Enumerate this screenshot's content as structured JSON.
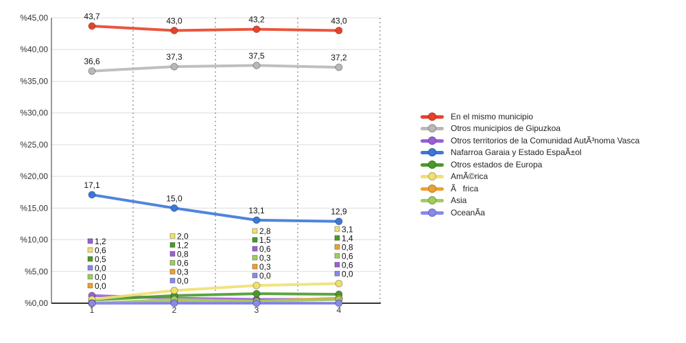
{
  "chart_data": {
    "type": "line",
    "categories": [
      "1",
      "2",
      "3",
      "4"
    ],
    "ylim": [
      0,
      45
    ],
    "yticks": [
      "%0,00",
      "%5,00",
      "%10,00",
      "%15,00",
      "%20,00",
      "%25,00",
      "%30,00",
      "%35,00",
      "%40,00",
      "%45,00"
    ],
    "grid": true,
    "legend_position": "right",
    "series": [
      {
        "name": "En el mismo municipio",
        "color": "#e8432a",
        "values": [
          43.7,
          43.0,
          43.2,
          43.0
        ],
        "labels": [
          "43,7",
          "43,0",
          "43,2",
          "43,0"
        ]
      },
      {
        "name": "Otros municipios de Gipuzkoa",
        "color": "#b8b8b8",
        "values": [
          36.6,
          37.3,
          37.5,
          37.2
        ],
        "labels": [
          "36,6",
          "37,3",
          "37,5",
          "37,2"
        ]
      },
      {
        "name": "Otros territorios de la Comunidad AutÃ³noma Vasca",
        "color": "#9a5fd6",
        "values": [
          1.2,
          0.8,
          0.6,
          0.6
        ],
        "labels": [
          "1,2",
          "0,8",
          "0,6",
          "0,6"
        ]
      },
      {
        "name": "Nafarroa Garaia y Estado EspaÃ±ol",
        "color": "#3b78d8",
        "values": [
          17.1,
          15.0,
          13.1,
          12.9
        ],
        "labels": [
          "17,1",
          "15,0",
          "13,1",
          "12,9"
        ]
      },
      {
        "name": "Otros estados de Europa",
        "color": "#4a9a2a",
        "values": [
          0.5,
          1.2,
          1.5,
          1.4
        ],
        "labels": [
          "0,5",
          "1,2",
          "1,5",
          "1,4"
        ]
      },
      {
        "name": "AmÃ©rica",
        "color": "#f0e070",
        "values": [
          0.6,
          2.0,
          2.8,
          3.1
        ],
        "labels": [
          "0,6",
          "2,0",
          "2,8",
          "3,1"
        ]
      },
      {
        "name": "Ãfrica",
        "color": "#f0a030",
        "values": [
          0.0,
          0.3,
          0.3,
          0.8
        ],
        "labels": [
          "0,0",
          "0,3",
          "0,3",
          "0,8"
        ]
      },
      {
        "name": "Asia",
        "color": "#a0cc60",
        "values": [
          0.0,
          0.6,
          0.3,
          0.6
        ],
        "labels": [
          "0,0",
          "0,6",
          "0,3",
          "0,6"
        ]
      },
      {
        "name": "OceanÃ­a",
        "color": "#8888ee",
        "values": [
          0.0,
          0.0,
          0.0,
          0.0
        ],
        "labels": [
          "0,0",
          "0,0",
          "0,0",
          "0,0"
        ]
      }
    ]
  }
}
